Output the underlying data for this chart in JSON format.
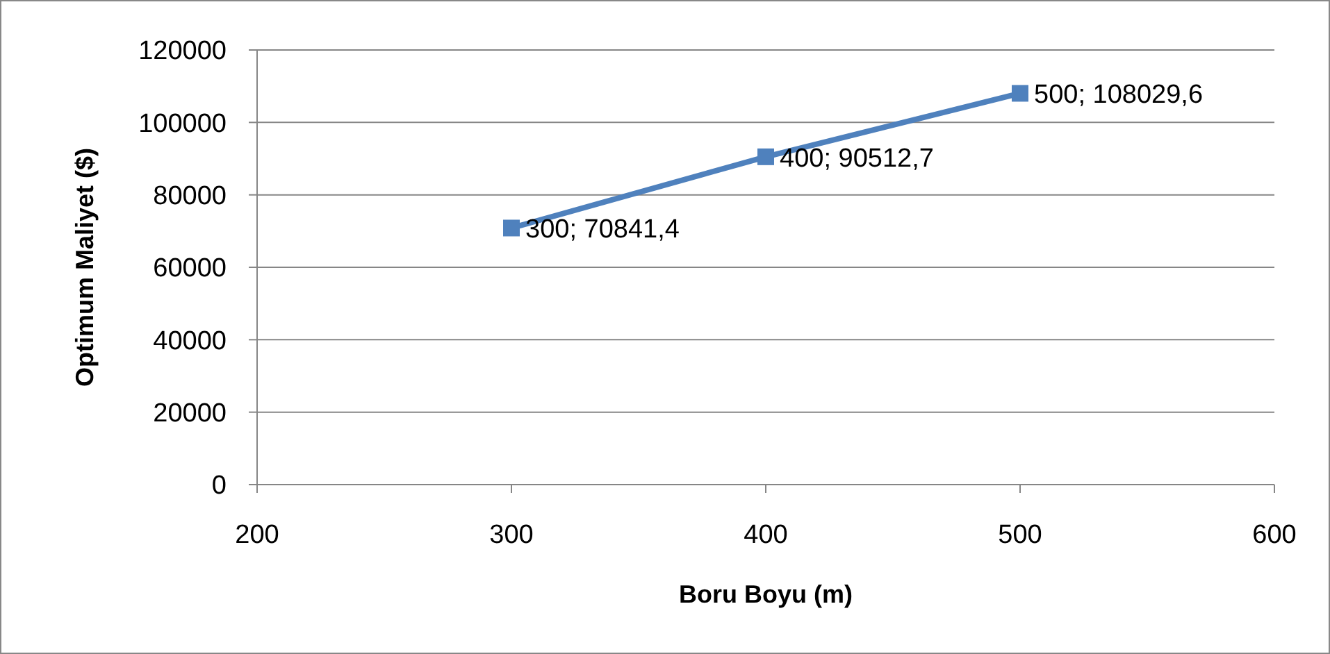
{
  "chart_data": {
    "type": "line",
    "xlabel": "Boru Boyu (m)",
    "ylabel": "Optimum Maliyet ($)",
    "x": [
      300,
      400,
      500
    ],
    "series": [
      {
        "color": "#4f81bd",
        "values": [
          70841.4,
          90512.7,
          108029.6
        ],
        "value_labels": [
          "300; 70841,4",
          "400; 90512,7",
          "500; 108029,6"
        ]
      }
    ],
    "xlim": [
      200,
      600
    ],
    "xticks": [
      200,
      300,
      400,
      500,
      600
    ],
    "ylim": [
      0,
      120000
    ],
    "yticks": [
      0,
      20000,
      40000,
      60000,
      80000,
      100000,
      120000
    ],
    "grid": "y",
    "marker": "square",
    "line_style": "solid"
  }
}
